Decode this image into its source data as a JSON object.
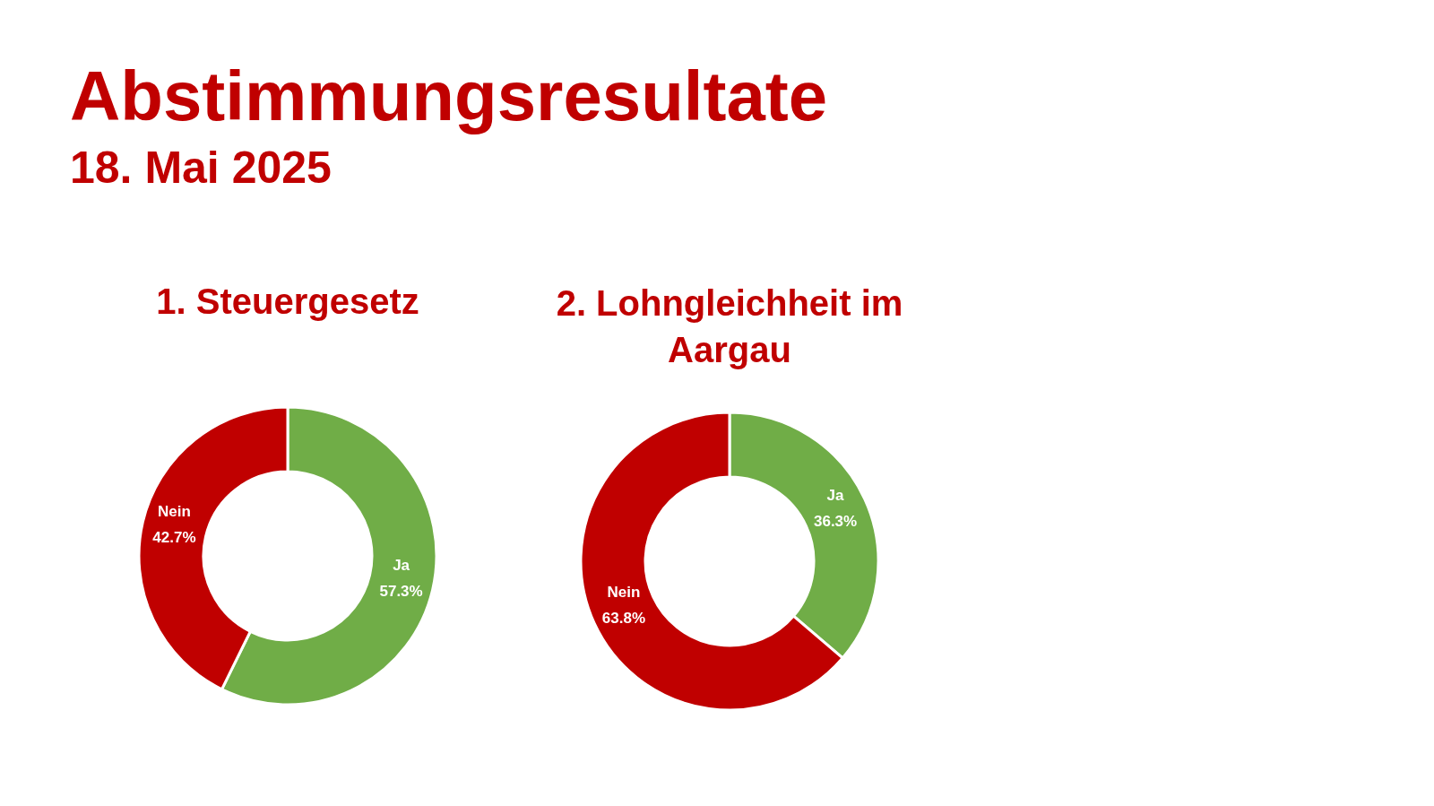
{
  "chart_data": [
    {
      "type": "other",
      "title": "Abstimmungsresultate",
      "subtitle": "18. Mai 2025"
    },
    {
      "type": "donut",
      "title": "1. Steuergesetz",
      "categories": [
        "Ja",
        "Nein"
      ],
      "values": [
        57.3,
        42.7
      ],
      "colors": [
        "#70ad47",
        "#c00000"
      ],
      "value_labels": [
        "57.3%",
        "42.7%"
      ]
    },
    {
      "type": "donut",
      "title": "2. Lohngleichheit im Aargau",
      "categories": [
        "Ja",
        "Nein"
      ],
      "values": [
        36.3,
        63.8
      ],
      "colors": [
        "#70ad47",
        "#c00000"
      ],
      "value_labels": [
        "36.3%",
        "63.8%"
      ]
    }
  ]
}
